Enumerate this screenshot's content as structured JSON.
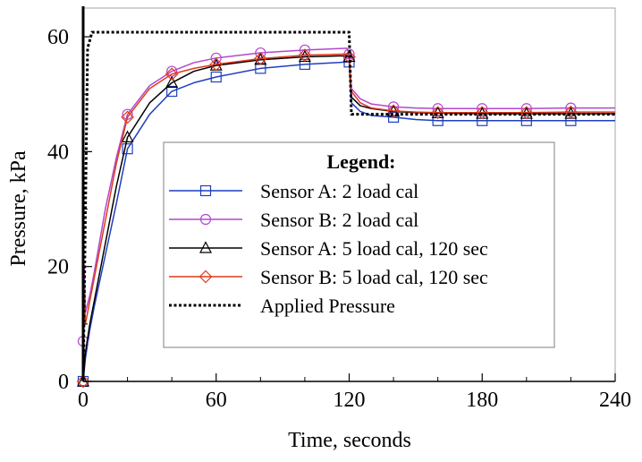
{
  "chart_data": {
    "type": "line",
    "title": "",
    "xlabel": "Time, seconds",
    "ylabel": "Pressure, kPa",
    "xlim": [
      0,
      240
    ],
    "ylim": [
      0,
      65
    ],
    "xticks": [
      0,
      60,
      120,
      180,
      240
    ],
    "xtick_labels": [
      "0",
      "60",
      "120",
      "180",
      "240"
    ],
    "yticks": [
      0,
      20,
      40,
      60
    ],
    "ytick_labels": [
      "0",
      "20",
      "40",
      "60"
    ],
    "grid": false,
    "legend": {
      "title": "Legend:",
      "placement": "center-right",
      "entries": [
        "Sensor A: 2 load cal",
        "Sensor B: 2 load cal",
        "Sensor A: 5 load cal, 120 sec",
        "Sensor B: 5 load cal, 120 sec",
        "Applied Pressure"
      ]
    },
    "series": [
      {
        "name": "Sensor A: 2 load cal",
        "color": "#1f3fbf",
        "marker": "square",
        "dash": "solid",
        "x": [
          0,
          1,
          3,
          5,
          10,
          15,
          20,
          30,
          40,
          50,
          60,
          80,
          100,
          119,
          120,
          121,
          125,
          130,
          140,
          150,
          160,
          180,
          200,
          220,
          240
        ],
        "y": [
          0,
          4,
          9,
          13,
          22,
          31,
          40.5,
          46.5,
          50.5,
          52,
          53,
          54.5,
          55.2,
          55.6,
          55.6,
          48.5,
          47,
          46.3,
          46,
          45.6,
          45.4,
          45.4,
          45.4,
          45.4,
          45.4
        ],
        "marker_x": [
          0,
          20,
          40,
          60,
          80,
          100,
          120,
          140,
          160,
          180,
          200,
          220
        ],
        "marker_y": [
          0,
          40.5,
          50.5,
          53,
          54.5,
          55.2,
          55.6,
          46,
          45.4,
          45.4,
          45.4,
          45.4
        ]
      },
      {
        "name": "Sensor B: 2 load cal",
        "color": "#b347cc",
        "marker": "circle",
        "dash": "solid",
        "x": [
          0,
          0.5,
          1,
          3,
          5,
          10,
          15,
          20,
          30,
          40,
          50,
          60,
          80,
          100,
          119,
          120,
          121,
          125,
          130,
          140,
          150,
          160,
          180,
          200,
          220,
          240
        ],
        "y": [
          7,
          20,
          12,
          15,
          19,
          30,
          39,
          46.5,
          51.5,
          54,
          55.5,
          56.3,
          57.2,
          57.7,
          58,
          57,
          51,
          49.2,
          48.3,
          47.8,
          47.6,
          47.5,
          47.5,
          47.5,
          47.6,
          47.6
        ],
        "marker_x": [
          0,
          20,
          40,
          60,
          80,
          100,
          120,
          140,
          160,
          180,
          200,
          220
        ],
        "marker_y": [
          7,
          46.5,
          54,
          56.3,
          57.2,
          57.7,
          57,
          47.8,
          47.5,
          47.5,
          47.5,
          47.6
        ]
      },
      {
        "name": "Sensor A: 5 load cal, 120 sec",
        "color": "#000000",
        "marker": "triangle",
        "dash": "solid",
        "x": [
          0,
          1,
          3,
          5,
          10,
          15,
          20,
          30,
          40,
          50,
          60,
          80,
          100,
          119,
          120,
          121,
          125,
          130,
          140,
          150,
          160,
          180,
          200,
          220,
          240
        ],
        "y": [
          0,
          5,
          10,
          14,
          24,
          34,
          42.5,
          48.5,
          52,
          54,
          55,
          56,
          56.5,
          56.7,
          56.5,
          49.5,
          48,
          47.5,
          47,
          46.8,
          46.7,
          46.6,
          46.6,
          46.6,
          46.6
        ],
        "marker_x": [
          0,
          20,
          40,
          60,
          80,
          100,
          120,
          140,
          160,
          180,
          200,
          220
        ],
        "marker_y": [
          0,
          42.5,
          52,
          55,
          56,
          56.5,
          56.5,
          47,
          46.7,
          46.6,
          46.6,
          46.6
        ]
      },
      {
        "name": "Sensor B: 5 load cal, 120 sec",
        "color": "#e03a1a",
        "marker": "diamond",
        "dash": "solid",
        "x": [
          0,
          0.5,
          1,
          3,
          5,
          10,
          15,
          20,
          30,
          40,
          50,
          60,
          80,
          100,
          119,
          120,
          121,
          125,
          130,
          140,
          150,
          160,
          180,
          200,
          220,
          240
        ],
        "y": [
          0,
          15,
          10,
          14,
          18,
          28,
          38,
          46,
          51,
          53.5,
          54.5,
          55.2,
          56.2,
          56.8,
          57,
          56.5,
          50.5,
          48.5,
          47.6,
          47.1,
          46.9,
          46.8,
          46.8,
          46.8,
          46.9,
          46.9
        ],
        "marker_x": [
          0,
          20,
          40,
          60,
          80,
          100,
          120,
          140,
          160,
          180,
          200,
          220
        ],
        "marker_y": [
          0,
          46,
          53.5,
          55.2,
          56.2,
          56.8,
          56.5,
          47.1,
          46.8,
          46.8,
          46.8,
          46.9
        ]
      },
      {
        "name": "Applied Pressure",
        "color": "#000000",
        "marker": "none",
        "dash": "dotted",
        "x": [
          0,
          2,
          4,
          120,
          121,
          240
        ],
        "y": [
          0,
          58,
          60.8,
          60.8,
          46.5,
          46.5
        ],
        "marker_x": [],
        "marker_y": []
      }
    ]
  }
}
